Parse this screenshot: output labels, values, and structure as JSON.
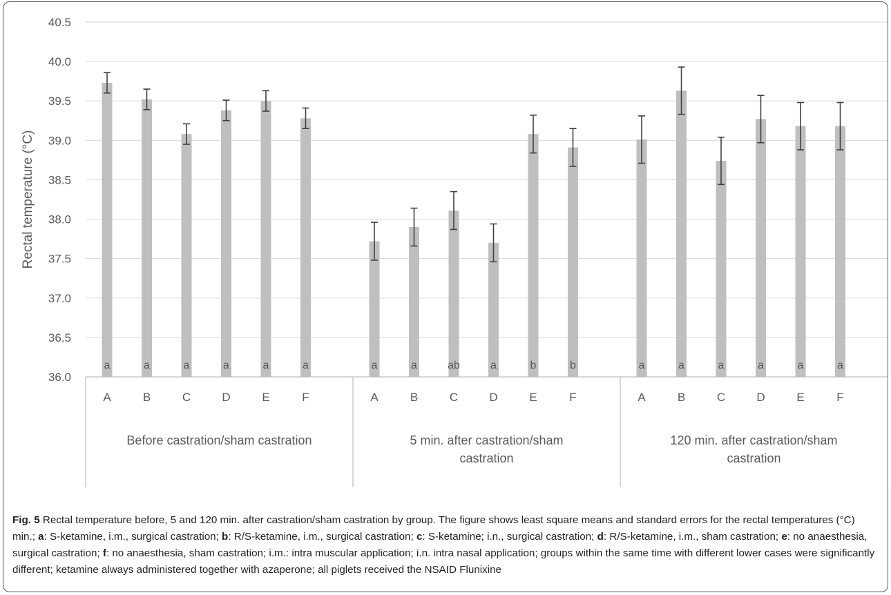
{
  "chart_data": {
    "type": "bar",
    "ylabel": "Rectal temperature (°C)",
    "ylim": [
      36.0,
      40.5
    ],
    "ytick_step": 0.5,
    "grid": true,
    "bar_color": "#bfbfbf",
    "groups": [
      {
        "label": "Before castration/sham castration",
        "categories": [
          "A",
          "B",
          "C",
          "D",
          "E",
          "F"
        ],
        "values": [
          39.73,
          39.52,
          39.08,
          39.38,
          39.5,
          39.28
        ],
        "errors": [
          0.13,
          0.13,
          0.13,
          0.13,
          0.13,
          0.13
        ],
        "letters": [
          "a",
          "a",
          "a",
          "a",
          "a",
          "a"
        ]
      },
      {
        "label": "5 min. after castration/sham castration",
        "categories": [
          "A",
          "B",
          "C",
          "D",
          "E",
          "F"
        ],
        "values": [
          37.72,
          37.9,
          38.11,
          37.7,
          39.08,
          38.91
        ],
        "errors": [
          0.24,
          0.24,
          0.24,
          0.24,
          0.24,
          0.24
        ],
        "letters": [
          "a",
          "a",
          "ab",
          "a",
          "b",
          "b"
        ]
      },
      {
        "label": "120 min. after castration/sham castration",
        "categories": [
          "A",
          "B",
          "C",
          "D",
          "E",
          "F"
        ],
        "values": [
          39.01,
          39.63,
          38.74,
          39.27,
          39.18,
          39.18
        ],
        "errors": [
          0.3,
          0.3,
          0.3,
          0.3,
          0.3,
          0.3
        ],
        "letters": [
          "a",
          "a",
          "a",
          "a",
          "a",
          "a"
        ]
      }
    ]
  },
  "caption": {
    "fig_label": "Fig. 5",
    "intro": " Rectal temperature before, 5 and 120 min. after castration/sham castration by group. The figure shows least square means and standard errors for the rectal temperatures (°C) min.; ",
    "keys": [
      {
        "k": "a",
        "t": ": S-ketamine, i.m., surgical castration; "
      },
      {
        "k": "b",
        "t": ": R/S-ketamine, i.m., surgical castration; "
      },
      {
        "k": "c",
        "t": ": S-ketamine; i.n., surgical castration; "
      },
      {
        "k": "d",
        "t": ": R/S-ketamine, i.m., sham castration; "
      },
      {
        "k": "e",
        "t": ": no anaesthesia, surgical castration; "
      },
      {
        "k": "f",
        "t": ": no anaesthesia, sham castration; i.m.: intra muscular application; i.n. intra nasal application; groups within the same time with different lower cases were significantly different; ketamine always administered together with azaperone; all piglets received the NSAID Flunixine"
      }
    ]
  }
}
